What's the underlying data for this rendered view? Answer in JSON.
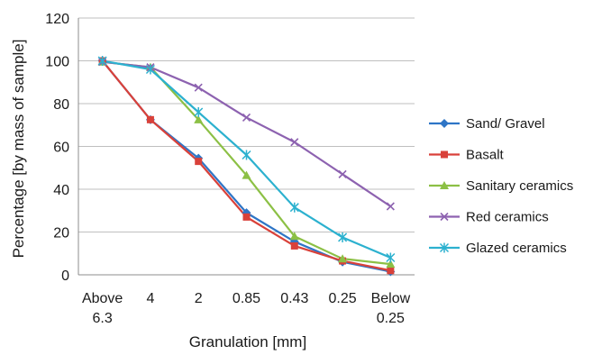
{
  "chart_data": {
    "type": "line",
    "title": "",
    "xlabel": "Granulation [mm]",
    "ylabel": "Percentage [by mass of sample]",
    "ylim": [
      0,
      120
    ],
    "yticks": [
      "0",
      "20",
      "40",
      "60",
      "80",
      "100",
      "120"
    ],
    "grid": true,
    "legend_position": "right",
    "categories": [
      [
        "Above",
        "6.3"
      ],
      [
        "4"
      ],
      [
        "2"
      ],
      [
        "0.85"
      ],
      [
        "0.43"
      ],
      [
        "0.25"
      ],
      [
        "Below",
        "0.25"
      ]
    ],
    "series": [
      {
        "name": "Sand/ Gravel",
        "color": "#2e75c6",
        "marker": "diamond",
        "values": [
          100,
          72.5,
          54.5,
          29,
          15.5,
          6,
          1.5
        ]
      },
      {
        "name": "Basalt",
        "color": "#d9413a",
        "marker": "square",
        "values": [
          100,
          72.5,
          53,
          27,
          13.5,
          6.5,
          2
        ]
      },
      {
        "name": "Sanitary ceramics",
        "color": "#8cc045",
        "marker": "triangle",
        "values": [
          99.5,
          97,
          72.5,
          46.5,
          18,
          7.5,
          5
        ]
      },
      {
        "name": "Red ceramics",
        "color": "#8d62b0",
        "marker": "x",
        "values": [
          99.5,
          97,
          87.5,
          73.5,
          62,
          47,
          32
        ]
      },
      {
        "name": "Glazed ceramics",
        "color": "#2cb1cf",
        "marker": "star",
        "values": [
          100,
          96,
          76,
          56,
          31.5,
          17.5,
          8
        ]
      }
    ]
  }
}
